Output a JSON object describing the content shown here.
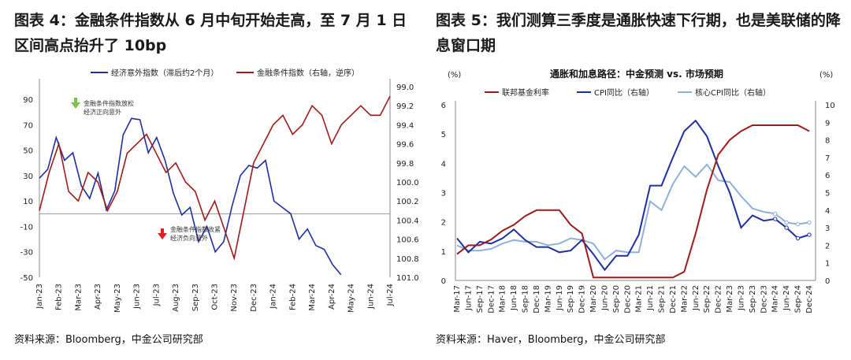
{
  "figure4": {
    "title": "图表 4：金融条件指数从 6 月中旬开始走高，至 7 月 1 日区间高点抬升了 10bp",
    "source": "资料来源：Bloomberg，中金公司研究部",
    "annotations": {
      "easing": "金融条件指数放松\n经济正向意外",
      "tightening": "金融条件指数收紧\n经济负向意外"
    },
    "colors": {
      "surprise": "#1f2fa0",
      "fci": "#9e1b1b",
      "up_arrow": "#7cc34b",
      "down_arrow": "#e02020"
    },
    "chart_data": {
      "type": "line",
      "x_labels": [
        "Jan-23",
        "Feb-23",
        "Mar-23",
        "Apr-23",
        "May-23",
        "Jun-23",
        "Jul-23",
        "Aug-23",
        "Sep-23",
        "Oct-23",
        "Nov-23",
        "Dec-23",
        "Jan-24",
        "Feb-24",
        "Mar-24",
        "Apr-24",
        "May-24",
        "Jun-24",
        "Jul-24"
      ],
      "ylim_left": [
        -50,
        100
      ],
      "yticks_left": [
        90,
        70,
        50,
        30,
        10,
        -10,
        -30,
        -50
      ],
      "ylim_right": [
        99.0,
        101.0
      ],
      "right_axis_inverted": true,
      "yticks_right": [
        "99.0",
        "99.2",
        "99.4",
        "99.6",
        "99.8",
        "100.0",
        "100.2",
        "100.4",
        "100.6",
        "100.8",
        "101.0"
      ],
      "series": [
        {
          "name": "经济意外指数（滞后约2个月）",
          "axis": "left",
          "values": [
            28,
            35,
            60,
            42,
            48,
            22,
            12,
            32,
            3,
            18,
            62,
            75,
            74,
            48,
            60,
            42,
            16,
            -1,
            5,
            -22,
            -10,
            -30,
            -22,
            6,
            30,
            38,
            36,
            42,
            10,
            5,
            0,
            -20,
            -12,
            -25,
            -28,
            -40,
            -48
          ]
        },
        {
          "name": "金融条件指数（右轴，逆序）",
          "axis": "right",
          "values": [
            100.3,
            99.9,
            99.6,
            100.1,
            100.2,
            99.9,
            100.0,
            100.3,
            100.1,
            99.7,
            99.6,
            99.5,
            99.7,
            99.9,
            99.8,
            100.0,
            100.1,
            100.4,
            100.2,
            100.5,
            100.8,
            100.3,
            99.8,
            99.6,
            99.4,
            99.3,
            99.5,
            99.4,
            99.2,
            99.3,
            99.6,
            99.4,
            99.3,
            99.2,
            99.3,
            99.3,
            99.1
          ]
        }
      ]
    }
  },
  "figure5": {
    "title": "图表 5：我们测算三季度是通胀快速下行期，也是美联储的降息窗口期",
    "source": "资料来源：Haver，Bloomberg，中金公司研究部",
    "colors": {
      "fed": "#9e1b1b",
      "cpi": "#1f2fa0",
      "core": "#8fb0dc"
    },
    "chart_data": {
      "type": "line",
      "title": "通胀和加息路径：中金预测 vs. 市场预期",
      "left_unit": "(%)",
      "right_unit": "(%)",
      "x_labels": [
        "Mar-17",
        "Jun-17",
        "Sep-17",
        "Dec-17",
        "Mar-18",
        "Jun-18",
        "Sep-18",
        "Dec-18",
        "Mar-19",
        "Jun-19",
        "Sep-19",
        "Dec-19",
        "Mar-20",
        "Jun-20",
        "Sep-20",
        "Dec-20",
        "Mar-21",
        "Jun-21",
        "Sep-21",
        "Dec-21",
        "Mar-22",
        "Jun-22",
        "Sep-22",
        "Dec-22",
        "Mar-23",
        "Jun-23",
        "Sep-23",
        "Dec-23",
        "Mar-24",
        "Jun-24",
        "Sep-24",
        "Dec-24"
      ],
      "ylim_left": [
        0,
        6
      ],
      "ylim_right": [
        0,
        10
      ],
      "yticks_left": [
        0,
        1,
        2,
        3,
        4,
        5,
        6
      ],
      "yticks_right": [
        0,
        1,
        2,
        3,
        4,
        5,
        6,
        7,
        8,
        9,
        10
      ],
      "series": [
        {
          "name": "联邦基金利率",
          "axis": "left",
          "values": [
            0.9,
            1.2,
            1.2,
            1.4,
            1.7,
            1.9,
            2.2,
            2.4,
            2.4,
            2.4,
            1.9,
            1.6,
            0.1,
            0.1,
            0.1,
            0.1,
            0.1,
            0.1,
            0.1,
            0.1,
            0.3,
            1.6,
            3.1,
            4.3,
            4.8,
            5.1,
            5.3,
            5.3,
            5.3,
            5.3,
            5.3,
            5.1
          ]
        },
        {
          "name": "CPI同比（右轴）",
          "axis": "right",
          "values": [
            2.4,
            1.6,
            2.2,
            2.1,
            2.4,
            2.9,
            2.3,
            1.9,
            1.9,
            1.6,
            1.7,
            2.3,
            1.5,
            0.6,
            1.4,
            1.4,
            2.6,
            5.4,
            5.4,
            7.0,
            8.5,
            9.1,
            8.2,
            6.5,
            5.0,
            3.0,
            3.7,
            3.4,
            3.5,
            3.0,
            2.4,
            2.6
          ]
        },
        {
          "name": "核心CPI同比（右轴）",
          "axis": "right",
          "values": [
            2.0,
            1.7,
            1.7,
            1.8,
            2.1,
            2.3,
            2.2,
            2.2,
            2.0,
            2.1,
            2.4,
            2.3,
            2.1,
            1.2,
            1.7,
            1.6,
            1.6,
            4.5,
            4.0,
            5.5,
            6.5,
            5.9,
            6.6,
            5.7,
            5.6,
            4.8,
            4.1,
            3.9,
            3.8,
            3.3,
            3.2,
            3.3
          ]
        }
      ]
    }
  }
}
